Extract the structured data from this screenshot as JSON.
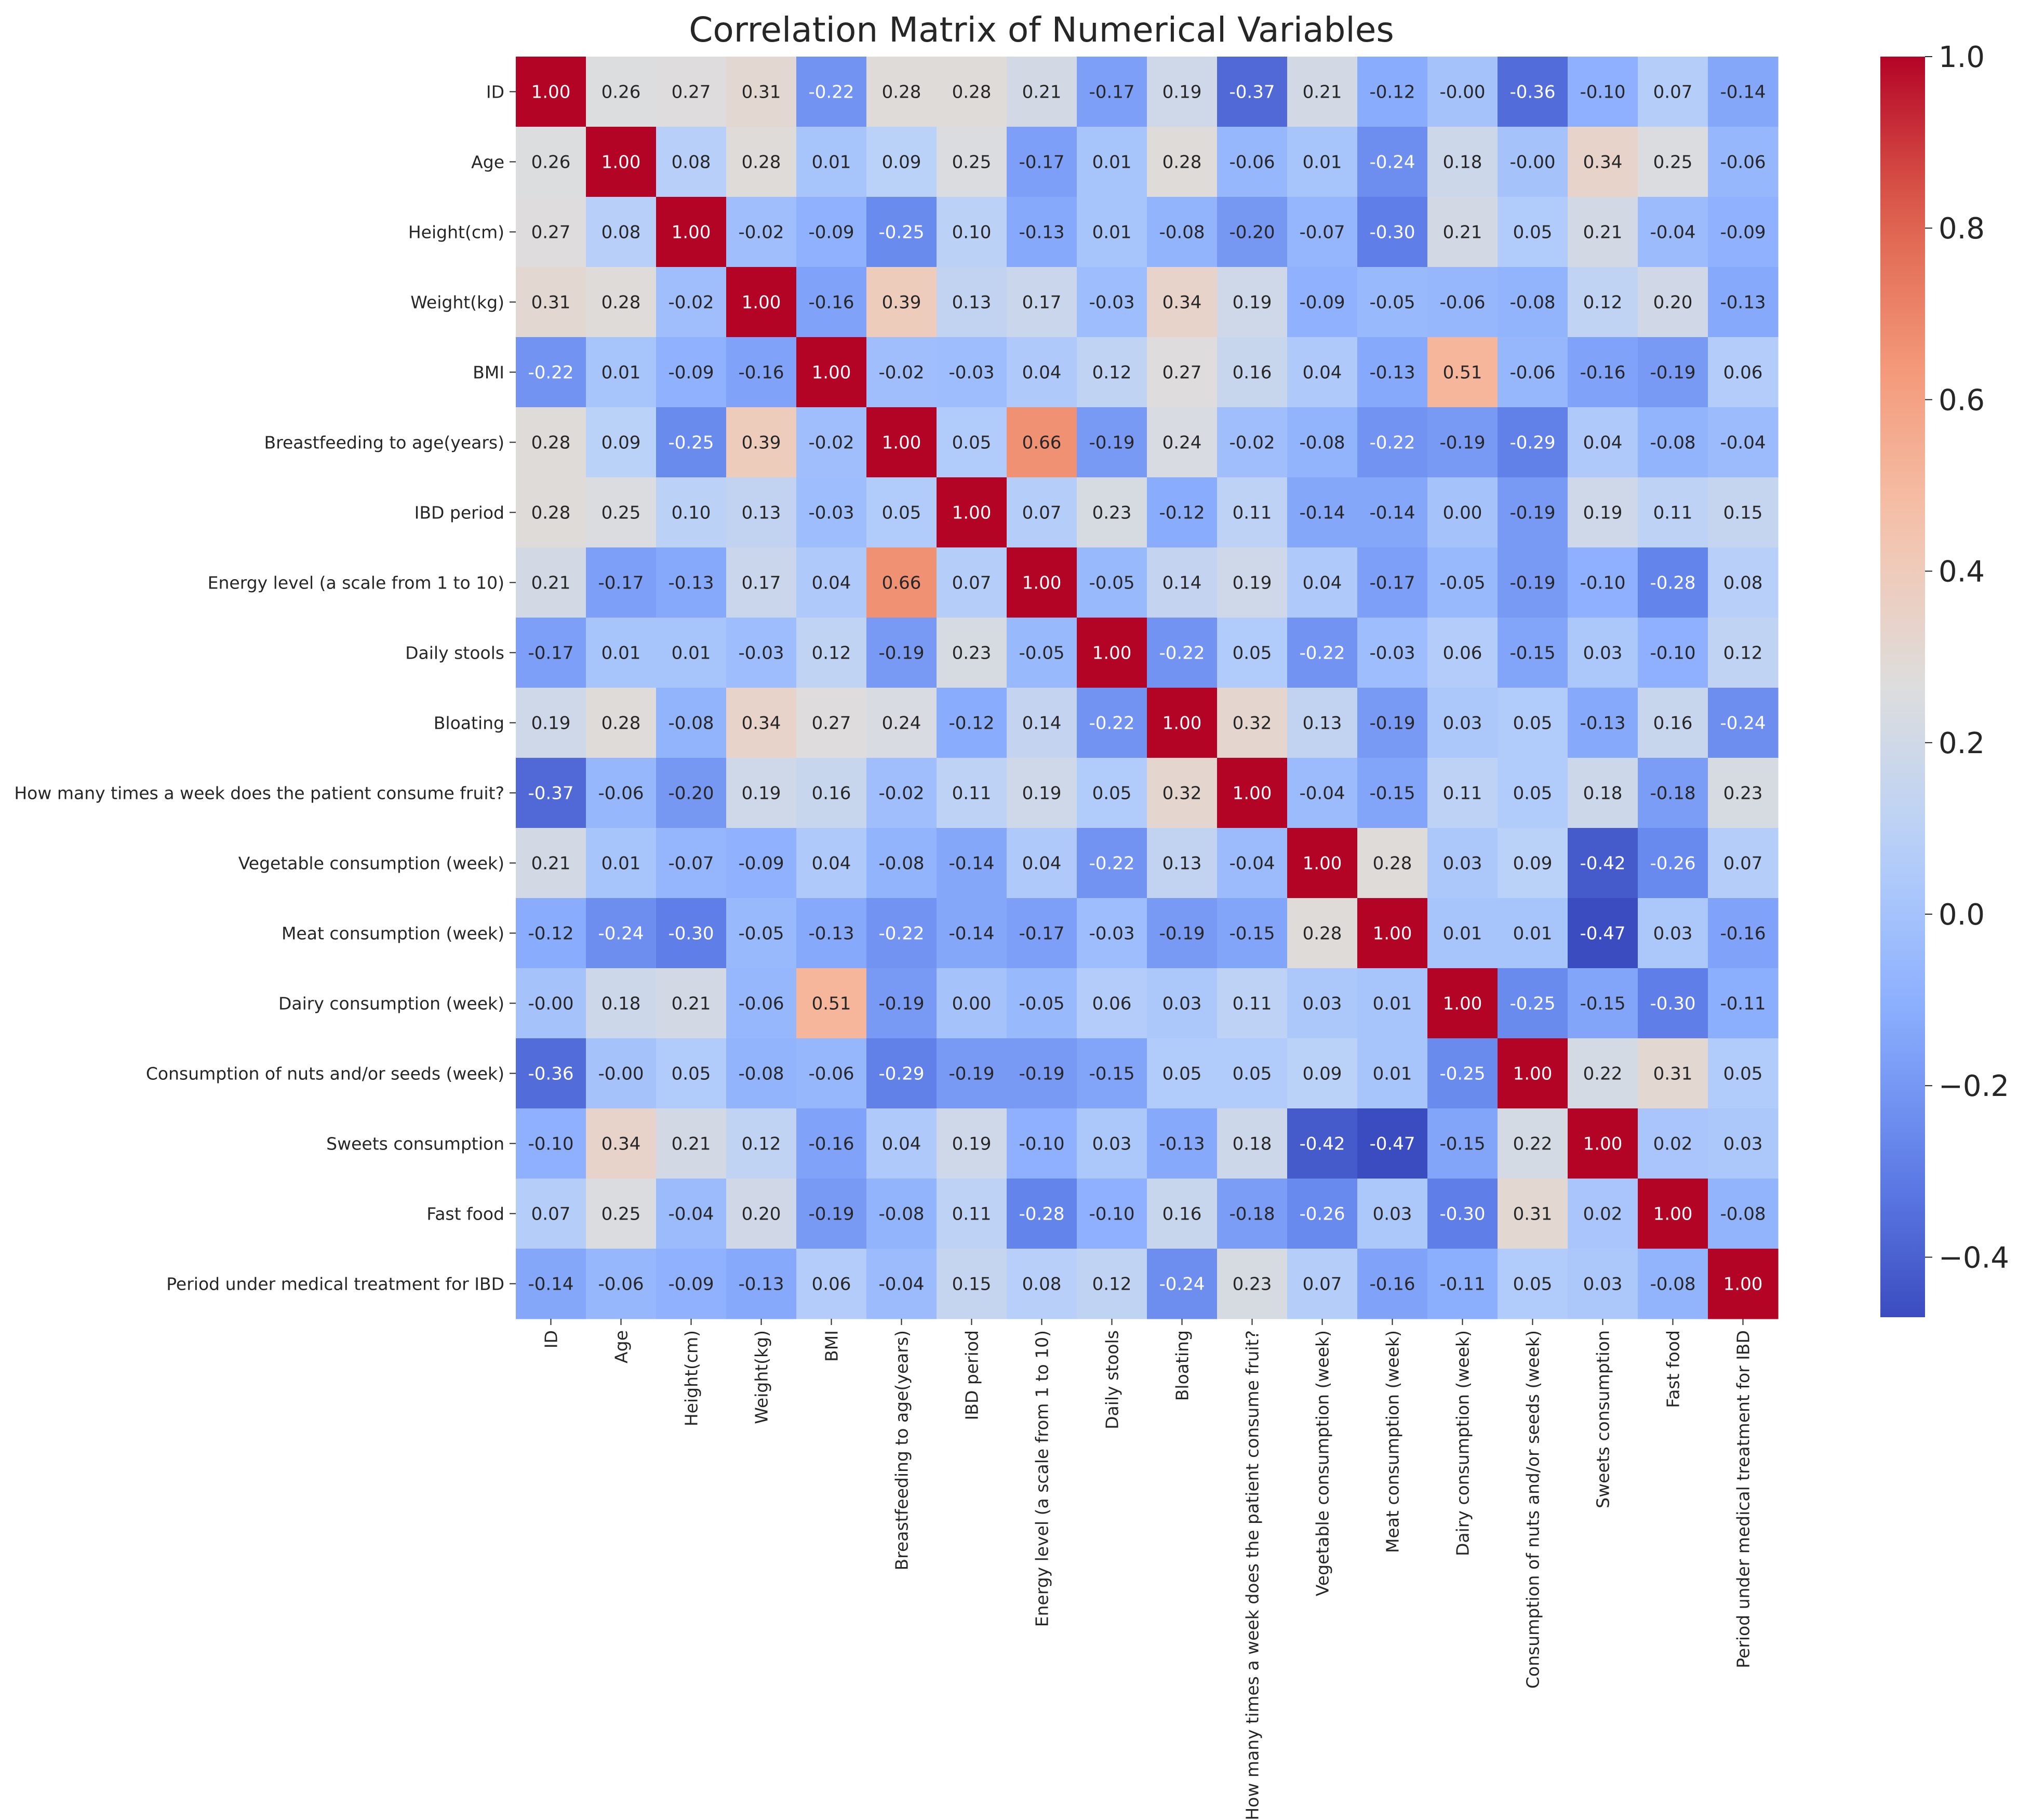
{
  "chart_data": {
    "type": "heatmap",
    "title": "Correlation Matrix of Numerical Variables",
    "xlabel": "",
    "ylabel": "",
    "colormap": "coolwarm",
    "value_format": "2 decimals",
    "color_range": [
      -0.47,
      1.0
    ],
    "colorbar_ticks": [
      "1.0",
      "0.8",
      "0.6",
      "0.4",
      "0.2",
      "0.0",
      "−0.2",
      "−0.4"
    ],
    "variables": [
      "ID",
      "Age",
      "Height(cm)",
      "Weight(kg)",
      "BMI",
      "Breastfeeding to age(years)",
      "IBD period",
      "Energy level (a scale from 1 to 10)",
      "Daily stools",
      "Bloating",
      "How many times a week does the patient consume fruit?",
      "Vegetable consumption (week)",
      "Meat consumption (week)",
      "Dairy consumption (week)",
      "Consumption of nuts and/or seeds (week)",
      "Sweets consumption",
      "Fast food",
      "Period under medical treatment for IBD"
    ],
    "labels": [
      [
        "1.00",
        "0.26",
        "0.27",
        "0.31",
        "-0.22",
        "0.28",
        "0.28",
        "0.21",
        "-0.17",
        "0.19",
        "-0.37",
        "0.21",
        "-0.12",
        "-0.00",
        "-0.36",
        "-0.10",
        "0.07",
        "-0.14"
      ],
      [
        "0.26",
        "1.00",
        "0.08",
        "0.28",
        "0.01",
        "0.09",
        "0.25",
        "-0.17",
        "0.01",
        "0.28",
        "-0.06",
        "0.01",
        "-0.24",
        "0.18",
        "-0.00",
        "0.34",
        "0.25",
        "-0.06"
      ],
      [
        "0.27",
        "0.08",
        "1.00",
        "-0.02",
        "-0.09",
        "-0.25",
        "0.10",
        "-0.13",
        "0.01",
        "-0.08",
        "-0.20",
        "-0.07",
        "-0.30",
        "0.21",
        "0.05",
        "0.21",
        "-0.04",
        "-0.09"
      ],
      [
        "0.31",
        "0.28",
        "-0.02",
        "1.00",
        "-0.16",
        "0.39",
        "0.13",
        "0.17",
        "-0.03",
        "0.34",
        "0.19",
        "-0.09",
        "-0.05",
        "-0.06",
        "-0.08",
        "0.12",
        "0.20",
        "-0.13"
      ],
      [
        "-0.22",
        "0.01",
        "-0.09",
        "-0.16",
        "1.00",
        "-0.02",
        "-0.03",
        "0.04",
        "0.12",
        "0.27",
        "0.16",
        "0.04",
        "-0.13",
        "0.51",
        "-0.06",
        "-0.16",
        "-0.19",
        "0.06"
      ],
      [
        "0.28",
        "0.09",
        "-0.25",
        "0.39",
        "-0.02",
        "1.00",
        "0.05",
        "0.66",
        "-0.19",
        "0.24",
        "-0.02",
        "-0.08",
        "-0.22",
        "-0.19",
        "-0.29",
        "0.04",
        "-0.08",
        "-0.04"
      ],
      [
        "0.28",
        "0.25",
        "0.10",
        "0.13",
        "-0.03",
        "0.05",
        "1.00",
        "0.07",
        "0.23",
        "-0.12",
        "0.11",
        "-0.14",
        "-0.14",
        "0.00",
        "-0.19",
        "0.19",
        "0.11",
        "0.15"
      ],
      [
        "0.21",
        "-0.17",
        "-0.13",
        "0.17",
        "0.04",
        "0.66",
        "0.07",
        "1.00",
        "-0.05",
        "0.14",
        "0.19",
        "0.04",
        "-0.17",
        "-0.05",
        "-0.19",
        "-0.10",
        "-0.28",
        "0.08"
      ],
      [
        "-0.17",
        "0.01",
        "0.01",
        "-0.03",
        "0.12",
        "-0.19",
        "0.23",
        "-0.05",
        "1.00",
        "-0.22",
        "0.05",
        "-0.22",
        "-0.03",
        "0.06",
        "-0.15",
        "0.03",
        "-0.10",
        "0.12"
      ],
      [
        "0.19",
        "0.28",
        "-0.08",
        "0.34",
        "0.27",
        "0.24",
        "-0.12",
        "0.14",
        "-0.22",
        "1.00",
        "0.32",
        "0.13",
        "-0.19",
        "0.03",
        "0.05",
        "-0.13",
        "0.16",
        "-0.24"
      ],
      [
        "-0.37",
        "-0.06",
        "-0.20",
        "0.19",
        "0.16",
        "-0.02",
        "0.11",
        "0.19",
        "0.05",
        "0.32",
        "1.00",
        "-0.04",
        "-0.15",
        "0.11",
        "0.05",
        "0.18",
        "-0.18",
        "0.23"
      ],
      [
        "0.21",
        "0.01",
        "-0.07",
        "-0.09",
        "0.04",
        "-0.08",
        "-0.14",
        "0.04",
        "-0.22",
        "0.13",
        "-0.04",
        "1.00",
        "0.28",
        "0.03",
        "0.09",
        "-0.42",
        "-0.26",
        "0.07"
      ],
      [
        "-0.12",
        "-0.24",
        "-0.30",
        "-0.05",
        "-0.13",
        "-0.22",
        "-0.14",
        "-0.17",
        "-0.03",
        "-0.19",
        "-0.15",
        "0.28",
        "1.00",
        "0.01",
        "0.01",
        "-0.47",
        "0.03",
        "-0.16"
      ],
      [
        "-0.00",
        "0.18",
        "0.21",
        "-0.06",
        "0.51",
        "-0.19",
        "0.00",
        "-0.05",
        "0.06",
        "0.03",
        "0.11",
        "0.03",
        "0.01",
        "1.00",
        "-0.25",
        "-0.15",
        "-0.30",
        "-0.11"
      ],
      [
        "-0.36",
        "-0.00",
        "0.05",
        "-0.08",
        "-0.06",
        "-0.29",
        "-0.19",
        "-0.19",
        "-0.15",
        "0.05",
        "0.05",
        "0.09",
        "0.01",
        "-0.25",
        "1.00",
        "0.22",
        "0.31",
        "0.05"
      ],
      [
        "-0.10",
        "0.34",
        "0.21",
        "0.12",
        "-0.16",
        "0.04",
        "0.19",
        "-0.10",
        "0.03",
        "-0.13",
        "0.18",
        "-0.42",
        "-0.47",
        "-0.15",
        "0.22",
        "1.00",
        "0.02",
        "0.03"
      ],
      [
        "0.07",
        "0.25",
        "-0.04",
        "0.20",
        "-0.19",
        "-0.08",
        "0.11",
        "-0.28",
        "-0.10",
        "0.16",
        "-0.18",
        "-0.26",
        "0.03",
        "-0.30",
        "0.31",
        "0.02",
        "1.00",
        "-0.08"
      ],
      [
        "-0.14",
        "-0.06",
        "-0.09",
        "-0.13",
        "0.06",
        "-0.04",
        "0.15",
        "0.08",
        "0.12",
        "-0.24",
        "0.23",
        "0.07",
        "-0.16",
        "-0.11",
        "0.05",
        "0.03",
        "-0.08",
        "1.00"
      ]
    ]
  }
}
